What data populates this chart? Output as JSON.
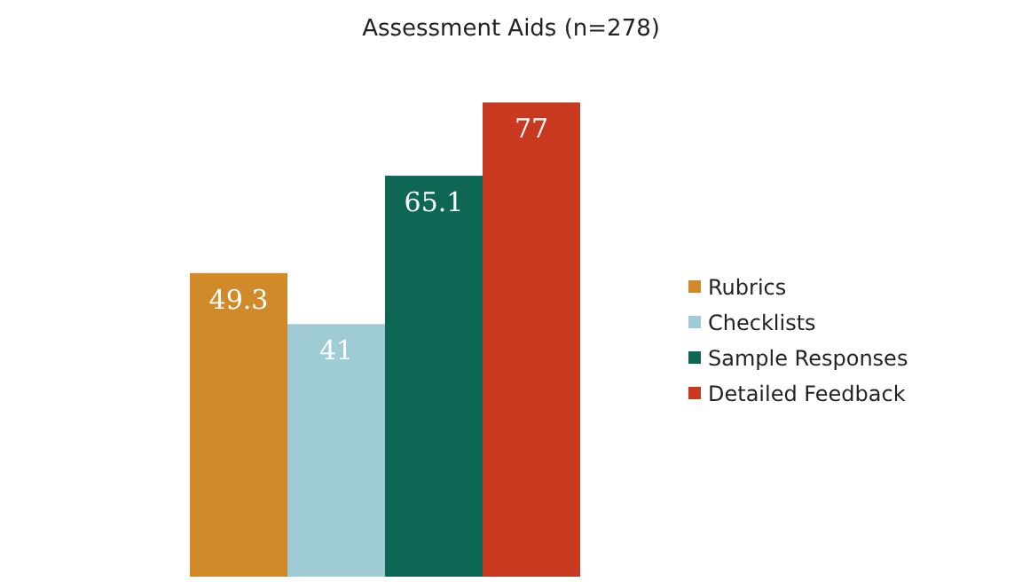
{
  "chart_data": {
    "type": "bar",
    "title": "Assessment Aids (n=278)",
    "categories": [
      null
    ],
    "series": [
      {
        "name": "Rubrics",
        "color": "#d08a2a",
        "values": [
          49.3
        ]
      },
      {
        "name": "Checklists",
        "color": "#9ecbd4",
        "values": [
          41
        ]
      },
      {
        "name": "Sample Responses",
        "color": "#0e6655",
        "values": [
          65.1
        ]
      },
      {
        "name": "Detailed Feedback",
        "color": "#c8391f",
        "values": [
          77
        ]
      }
    ],
    "data_labels": true,
    "legend": "right"
  }
}
